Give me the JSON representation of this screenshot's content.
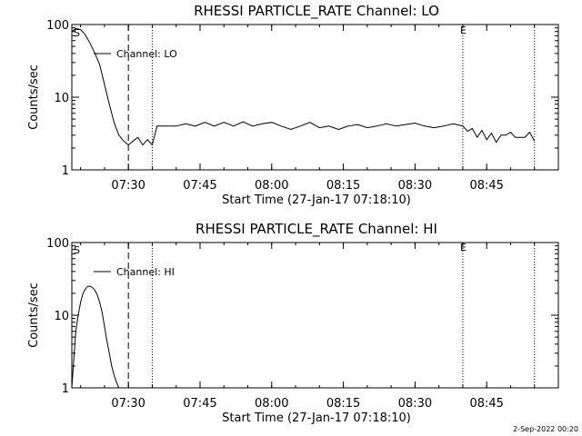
{
  "footer_date": "2-Sep-2022 00:20",
  "panels": [
    {
      "title": "RHESSI PARTICLE_RATE Channel: LO",
      "ylabel": "Counts/sec",
      "xlabel": "Start Time (27-Jan-17 07:18:10)",
      "legend": "Channel: LO",
      "marker_s": "S",
      "marker_e": "E"
    },
    {
      "title": "RHESSI PARTICLE_RATE Channel: HI",
      "ylabel": "Counts/sec",
      "xlabel": "Start Time (27-Jan-17 07:18:10)",
      "legend": "Channel: HI",
      "marker_s": "S",
      "marker_e": "E"
    }
  ],
  "chart_data": [
    {
      "type": "line",
      "title": "RHESSI PARTICLE_RATE Channel: LO",
      "xlabel": "Start Time (27-Jan-17 07:18:10)",
      "ylabel": "Counts/sec",
      "y_scale": "log",
      "ylim": [
        1,
        100
      ],
      "xlim": [
        "07:18:10",
        "09:00:00"
      ],
      "x_ticks": [
        "07:30",
        "07:45",
        "08:00",
        "08:15",
        "08:30",
        "08:45"
      ],
      "y_ticks": [
        "1",
        "10",
        "100"
      ],
      "legend_placement": "top-left",
      "grid": false,
      "vlines": [
        {
          "x": "07:30",
          "style": "dashed"
        },
        {
          "x": "07:35",
          "style": "dotted"
        },
        {
          "x": "08:40",
          "style": "dotted",
          "label": "E"
        },
        {
          "x": "08:55",
          "style": "dotted"
        }
      ],
      "series": [
        {
          "name": "Channel: LO",
          "x": [
            "07:18:10",
            "07:19",
            "07:20",
            "07:21",
            "07:22",
            "07:23",
            "07:24",
            "07:25",
            "07:26",
            "07:27",
            "07:28",
            "07:29",
            "07:30",
            "07:31",
            "07:32",
            "07:33",
            "07:34",
            "07:35",
            "07:36",
            "07:38",
            "07:40",
            "07:42",
            "07:44",
            "07:46",
            "07:48",
            "07:50",
            "07:52",
            "07:54",
            "07:56",
            "07:58",
            "08:00",
            "08:02",
            "08:04",
            "08:06",
            "08:08",
            "08:10",
            "08:12",
            "08:14",
            "08:16",
            "08:18",
            "08:20",
            "08:22",
            "08:24",
            "08:26",
            "08:28",
            "08:30",
            "08:32",
            "08:34",
            "08:36",
            "08:38",
            "08:40",
            "08:41",
            "08:42",
            "08:43",
            "08:44",
            "08:45",
            "08:46",
            "08:47",
            "08:48",
            "08:49",
            "08:50",
            "08:51",
            "08:52",
            "08:53",
            "08:54",
            "08:55"
          ],
          "values": [
            80,
            88,
            85,
            72,
            55,
            40,
            28,
            15,
            8,
            4.5,
            3,
            2.5,
            2.2,
            2.5,
            2.8,
            2.2,
            2.6,
            2.2,
            4,
            4,
            4,
            4.3,
            4,
            4.5,
            4,
            4.5,
            4,
            4.6,
            4,
            4.3,
            4.5,
            4,
            3.6,
            4,
            4.5,
            3.8,
            4,
            3.6,
            4,
            4.2,
            3.8,
            4,
            4.3,
            4,
            4.2,
            4.4,
            4,
            3.8,
            4,
            4.3,
            4,
            3.4,
            3.7,
            2.8,
            3.5,
            2.6,
            3.2,
            2.4,
            3,
            3,
            3.3,
            2.8,
            2.8,
            2.8,
            3.3,
            2.5
          ]
        }
      ]
    },
    {
      "type": "line",
      "title": "RHESSI PARTICLE_RATE Channel: HI",
      "xlabel": "Start Time (27-Jan-17 07:18:10)",
      "ylabel": "Counts/sec",
      "y_scale": "log",
      "ylim": [
        1,
        100
      ],
      "xlim": [
        "07:18:10",
        "09:00:00"
      ],
      "x_ticks": [
        "07:30",
        "07:45",
        "08:00",
        "08:15",
        "08:30",
        "08:45"
      ],
      "y_ticks": [
        "1",
        "10",
        "100"
      ],
      "legend_placement": "top-left",
      "grid": false,
      "vlines": [
        {
          "x": "07:30",
          "style": "dashed"
        },
        {
          "x": "07:35",
          "style": "dotted"
        },
        {
          "x": "08:40",
          "style": "dotted",
          "label": "E"
        },
        {
          "x": "08:55",
          "style": "dotted"
        }
      ],
      "series": [
        {
          "name": "Channel: HI",
          "x": [
            "07:18:10",
            "07:18:40",
            "07:19",
            "07:19:30",
            "07:20",
            "07:20:30",
            "07:21",
            "07:21:30",
            "07:22",
            "07:22:30",
            "07:23",
            "07:23:30",
            "07:24",
            "07:24:30",
            "07:25",
            "07:25:30",
            "07:26",
            "07:26:30",
            "07:27",
            "07:27:30",
            "07:28"
          ],
          "values": [
            1,
            3,
            6,
            10,
            15,
            20,
            23,
            25,
            25,
            24,
            22,
            19,
            15,
            11,
            7,
            4.5,
            3,
            2,
            1.5,
            1.2,
            1
          ]
        }
      ]
    }
  ]
}
